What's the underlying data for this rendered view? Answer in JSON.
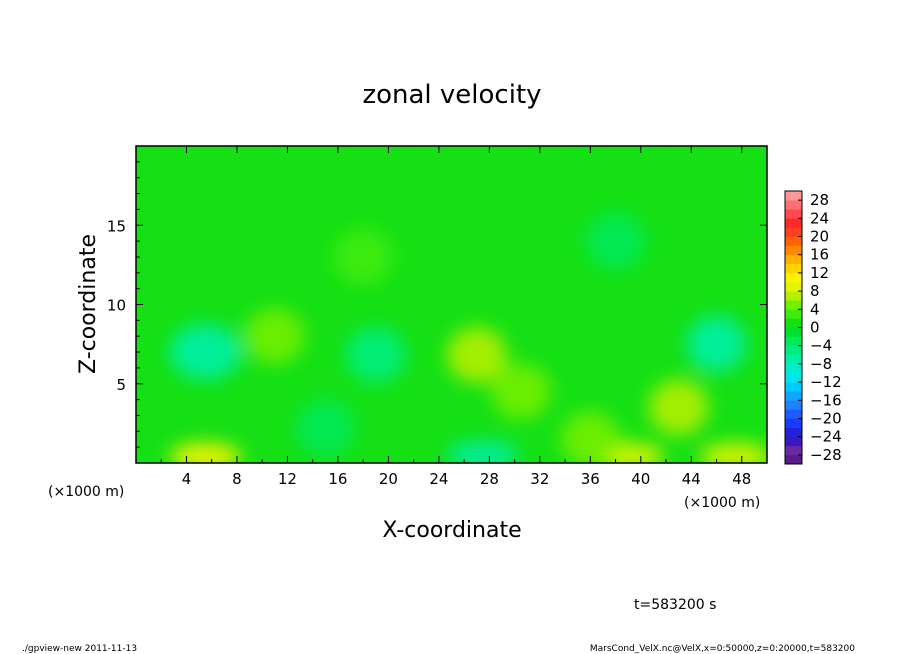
{
  "chart_data": {
    "type": "heatmap",
    "title": "zonal velocity",
    "xlabel": "X-coordinate",
    "ylabel": "Z-coordinate",
    "x_unit": "(×1000 m)",
    "x_unit_right": "(×1000 m)",
    "xlim": [
      0,
      50
    ],
    "ylim": [
      0,
      20
    ],
    "xticks": [
      "4",
      "8",
      "12",
      "16",
      "20",
      "24",
      "28",
      "32",
      "36",
      "40",
      "44",
      "48"
    ],
    "yticks": [
      "5",
      "10",
      "15"
    ],
    "colorbar": {
      "labels": [
        "28",
        "24",
        "20",
        "16",
        "12",
        "8",
        "4",
        "0",
        "−4",
        "−8",
        "−12",
        "−16",
        "−20",
        "−24",
        "−28"
      ],
      "levels": [
        -30,
        -28,
        -26,
        -24,
        -22,
        -20,
        -18,
        -16,
        -14,
        -12,
        -10,
        -8,
        -6,
        -4,
        -2,
        0,
        2,
        4,
        6,
        8,
        10,
        12,
        14,
        16,
        18,
        20,
        22,
        24,
        26,
        28,
        30
      ],
      "colors": [
        "#5a1a8a",
        "#6a2aa8",
        "#3a18c0",
        "#2222d8",
        "#1a3aff",
        "#1e5cff",
        "#1e82ff",
        "#10a6ff",
        "#00ccff",
        "#00e4f0",
        "#00eecc",
        "#00f0a8",
        "#00ee80",
        "#00ea5a",
        "#00e030",
        "#14e014",
        "#40ec10",
        "#72f000",
        "#b4f000",
        "#e2f400",
        "#fff200",
        "#ffd400",
        "#ffb000",
        "#ff8800",
        "#ff6200",
        "#ff4020",
        "#ff2828",
        "#ff4850",
        "#ff7070",
        "#ff9898"
      ]
    },
    "features": [
      {
        "x": 5.5,
        "z": 7.0,
        "value": -8
      },
      {
        "x": 19.0,
        "z": 6.8,
        "value": -6
      },
      {
        "x": 46.0,
        "z": 7.5,
        "value": -7
      },
      {
        "x": 27.5,
        "z": 0.5,
        "value": -8
      },
      {
        "x": 15.0,
        "z": 2.2,
        "value": -4
      },
      {
        "x": 27.0,
        "z": 6.8,
        "value": 6
      },
      {
        "x": 30.5,
        "z": 4.5,
        "value": 5
      },
      {
        "x": 43.0,
        "z": 3.5,
        "value": 6
      },
      {
        "x": 5.5,
        "z": 0.4,
        "value": 10
      },
      {
        "x": 39.0,
        "z": 0.4,
        "value": 9
      },
      {
        "x": 47.5,
        "z": 0.4,
        "value": 9
      },
      {
        "x": 11.0,
        "z": 8.0,
        "value": 5
      },
      {
        "x": 36.0,
        "z": 1.5,
        "value": 5
      },
      {
        "x": 38.0,
        "z": 14.0,
        "value": -3
      },
      {
        "x": 18.0,
        "z": 13.0,
        "value": 2
      }
    ],
    "grid": false,
    "legend": "right colorbar"
  },
  "time_label": "t=583200 s",
  "footer_left": "./gpview-new 2011-11-13",
  "footer_right": "MarsCond_VelX.nc@VelX,x=0:50000,z=0:20000,t=583200"
}
